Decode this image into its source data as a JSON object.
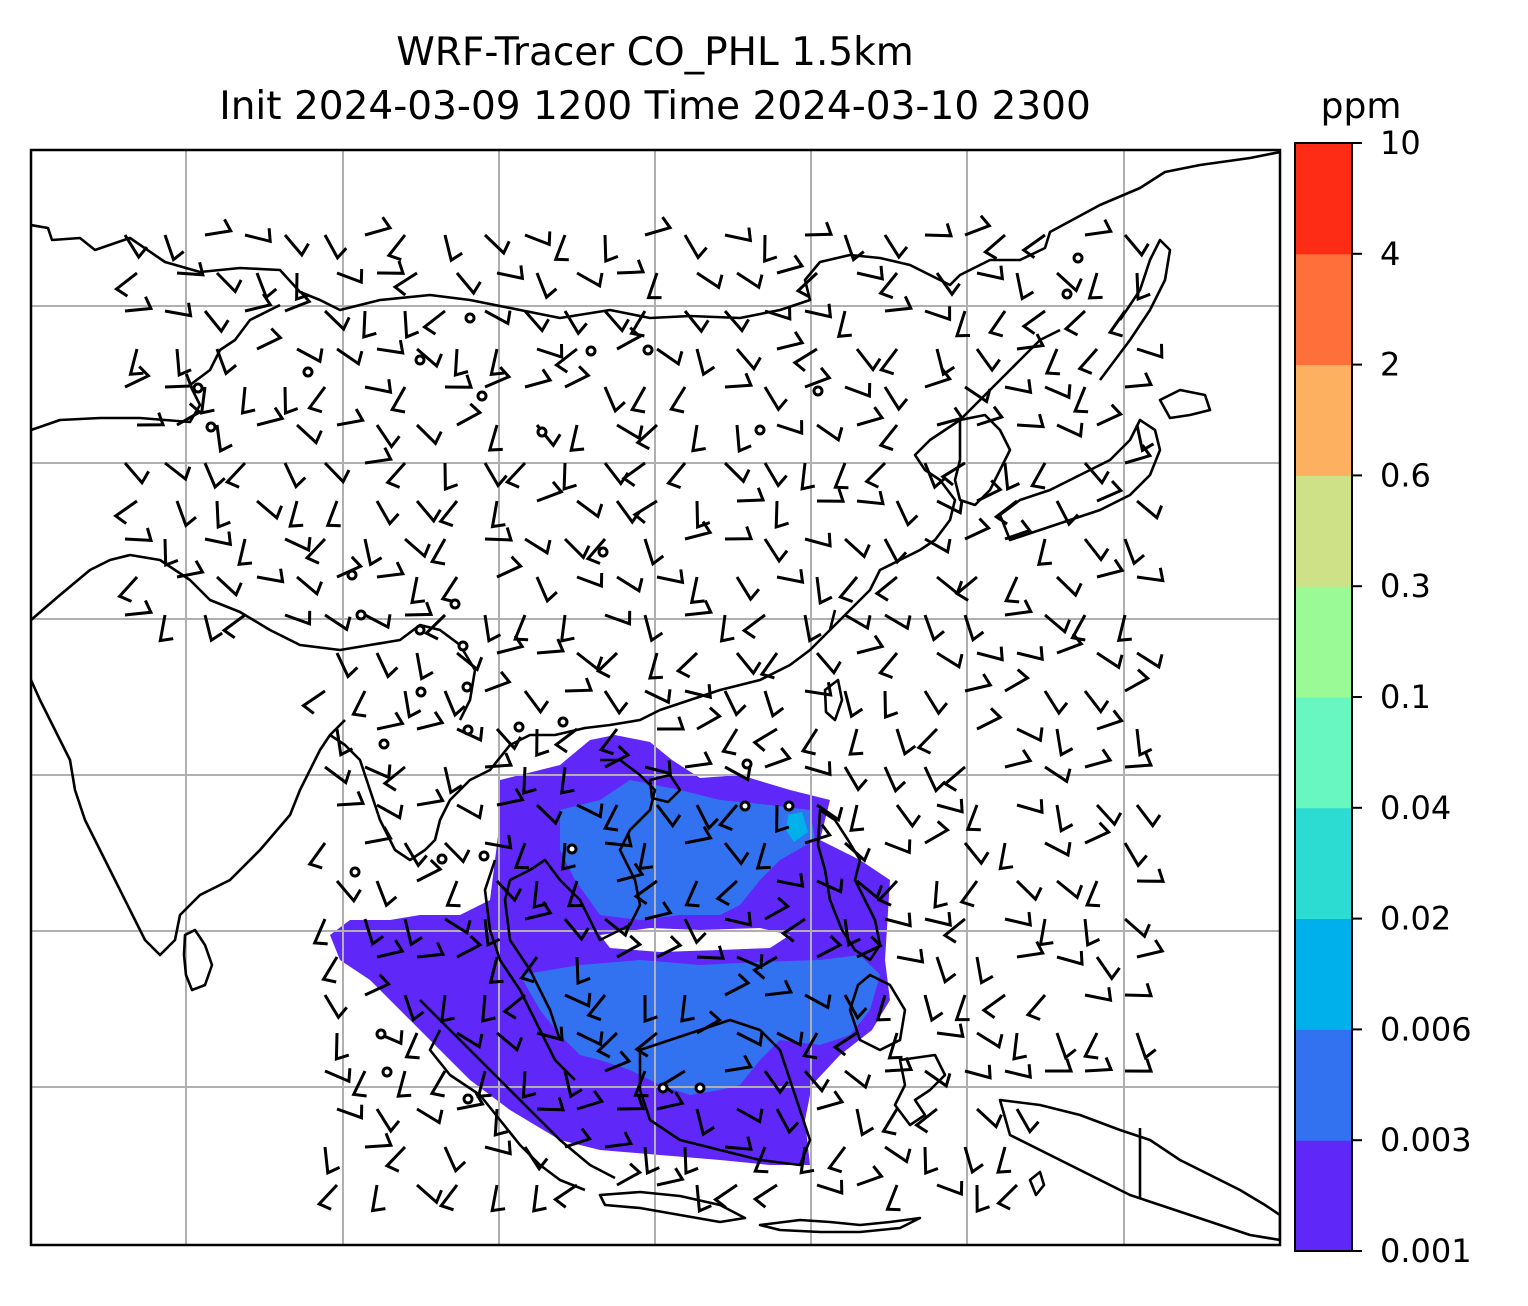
{
  "title_line1": "WRF-Tracer CO_PHL 1.5km",
  "title_line2": "Init 2024-03-09 1200 Time 2024-03-10 2300",
  "colorbar": {
    "unit": "ppm",
    "levels": [
      "0.001",
      "0.003",
      "0.006",
      "0.02",
      "0.04",
      "0.1",
      "0.3",
      "0.6",
      "2",
      "4",
      "10"
    ],
    "colors": [
      "#6028f8",
      "#3272f0",
      "#00b0ea",
      "#2cdbd2",
      "#68f7c0",
      "#9afa96",
      "#cfe187",
      "#fdb160",
      "#fe6f3a",
      "#fe2c14"
    ]
  },
  "map": {
    "ocean_color": "#ffffff",
    "coastline_color": "#000000",
    "gridline_color": "#b0b0b0",
    "plume_levels_present": [
      "0.001",
      "0.003",
      "0.006"
    ]
  }
}
